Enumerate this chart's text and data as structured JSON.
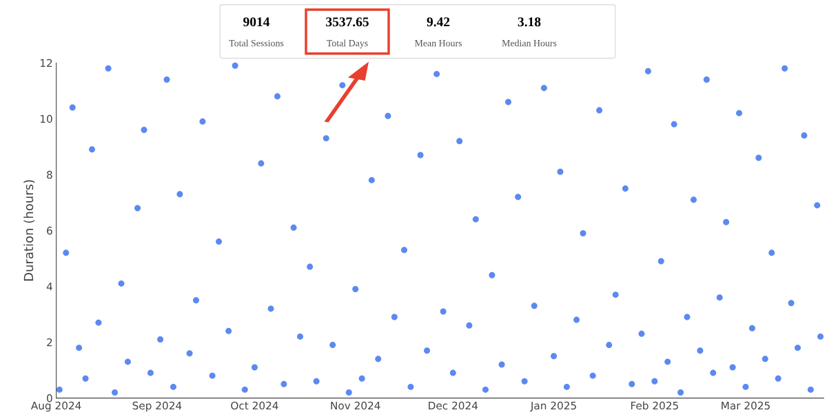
{
  "chart_data": {
    "type": "scatter",
    "ylabel": "Duration (hours)",
    "annotations": [
      "9014",
      "Total Sessions",
      "3537.65",
      "Total Days",
      "9.42",
      "Mean Hours",
      "3.18",
      "Median Hours"
    ],
    "xlim": [
      "2024-08-01",
      "2025-03-25"
    ],
    "xticks": [
      {
        "value": "2024-08-01",
        "label": "Aug 2024"
      },
      {
        "value": "2024-09-01",
        "label": "Sep 2024"
      },
      {
        "value": "2024-10-01",
        "label": "Oct 2024"
      },
      {
        "value": "2024-11-01",
        "label": "Nov 2024"
      },
      {
        "value": "2024-12-01",
        "label": "Dec 2024"
      },
      {
        "value": "2025-01-01",
        "label": "Jan 2025"
      },
      {
        "value": "2025-02-01",
        "label": "Feb 2025"
      },
      {
        "value": "2025-03-01",
        "label": "Mar 2025"
      }
    ],
    "ylim": [
      0,
      12
    ],
    "yticks": [
      0,
      2,
      4,
      6,
      8,
      10,
      12
    ],
    "grid": false,
    "marker": "circle",
    "series": [
      {
        "color": "#4a7cf0",
        "x": [
          "2024-08-02",
          "2024-08-04",
          "2024-08-06",
          "2024-08-08",
          "2024-08-10",
          "2024-08-12",
          "2024-08-14",
          "2024-08-17",
          "2024-08-19",
          "2024-08-21",
          "2024-08-23",
          "2024-08-26",
          "2024-08-28",
          "2024-08-30",
          "2024-09-02",
          "2024-09-04",
          "2024-09-06",
          "2024-09-08",
          "2024-09-11",
          "2024-09-13",
          "2024-09-15",
          "2024-09-18",
          "2024-09-20",
          "2024-09-23",
          "2024-09-25",
          "2024-09-28",
          "2024-10-01",
          "2024-10-03",
          "2024-10-06",
          "2024-10-08",
          "2024-10-10",
          "2024-10-13",
          "2024-10-15",
          "2024-10-18",
          "2024-10-20",
          "2024-10-23",
          "2024-10-25",
          "2024-10-28",
          "2024-10-30",
          "2024-11-01",
          "2024-11-03",
          "2024-11-06",
          "2024-11-08",
          "2024-11-11",
          "2024-11-13",
          "2024-11-16",
          "2024-11-18",
          "2024-11-21",
          "2024-11-23",
          "2024-11-26",
          "2024-11-28",
          "2024-12-01",
          "2024-12-03",
          "2024-12-06",
          "2024-12-08",
          "2024-12-11",
          "2024-12-13",
          "2024-12-16",
          "2024-12-18",
          "2024-12-21",
          "2024-12-23",
          "2024-12-26",
          "2024-12-29",
          "2025-01-01",
          "2025-01-03",
          "2025-01-05",
          "2025-01-08",
          "2025-01-10",
          "2025-01-13",
          "2025-01-15",
          "2025-01-18",
          "2025-01-20",
          "2025-01-23",
          "2025-01-25",
          "2025-01-28",
          "2025-01-30",
          "2025-02-01",
          "2025-02-03",
          "2025-02-05",
          "2025-02-07",
          "2025-02-09",
          "2025-02-11",
          "2025-02-13",
          "2025-02-15",
          "2025-02-17",
          "2025-02-19",
          "2025-02-21",
          "2025-02-23",
          "2025-02-25",
          "2025-02-27",
          "2025-03-01",
          "2025-03-03",
          "2025-03-05",
          "2025-03-07",
          "2025-03-09",
          "2025-03-11",
          "2025-03-13",
          "2025-03-15",
          "2025-03-17",
          "2025-03-19",
          "2025-03-21",
          "2025-03-23",
          "2025-03-24"
        ],
        "values": [
          0.3,
          5.2,
          10.4,
          1.8,
          0.7,
          8.9,
          2.7,
          11.8,
          0.2,
          4.1,
          1.3,
          6.8,
          9.6,
          0.9,
          2.1,
          11.4,
          0.4,
          7.3,
          1.6,
          3.5,
          9.9,
          0.8,
          5.6,
          2.4,
          11.9,
          0.3,
          1.1,
          8.4,
          3.2,
          10.8,
          0.5,
          6.1,
          2.2,
          4.7,
          0.6,
          9.3,
          1.9,
          11.2,
          0.2,
          3.9,
          0.7,
          7.8,
          1.4,
          10.1,
          2.9,
          5.3,
          0.4,
          8.7,
          1.7,
          11.6,
          3.1,
          0.9,
          9.2,
          2.6,
          6.4,
          0.3,
          4.4,
          1.2,
          10.6,
          7.2,
          0.6,
          3.3,
          11.1,
          1.5,
          8.1,
          0.4,
          2.8,
          5.9,
          0.8,
          10.3,
          1.9,
          3.7,
          7.5,
          0.5,
          2.3,
          11.7,
          0.6,
          4.9,
          1.3,
          9.8,
          0.2,
          2.9,
          7.1,
          1.7,
          11.4,
          0.9,
          3.6,
          6.3,
          1.1,
          10.2,
          0.4,
          2.5,
          8.6,
          1.4,
          5.2,
          0.7,
          11.8,
          3.4,
          1.8,
          9.4,
          0.3,
          6.9,
          2.2
        ]
      }
    ]
  }
}
